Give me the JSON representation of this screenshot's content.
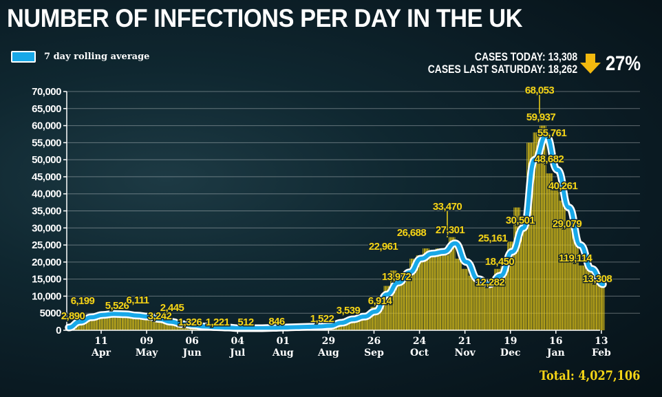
{
  "header": {
    "title": "NUMBER OF INFECTIONS PER DAY IN THE UK",
    "cases_today": "CASES TODAY: 13,308",
    "cases_last_saturday": "CASES LAST SATURDAY: 18,262",
    "change_percent": "27%",
    "change_direction": "down",
    "total": "Total: 4,027,106"
  },
  "colors": {
    "bars": "#e8c916",
    "rolling_line": "#18a8e8",
    "line_outline": "#ffffff",
    "annotations": "#f5d516",
    "background": "#0a1a22"
  },
  "chart_data": {
    "type": "bar",
    "title": "NUMBER OF INFECTIONS PER DAY IN THE UK",
    "ylim": [
      0,
      70000
    ],
    "yticks": [
      "0",
      "5000",
      "10,000",
      "15,000",
      "20,000",
      "25,000",
      "30,000",
      "35,000",
      "40,000",
      "45,000",
      "50,000",
      "55,000",
      "60,000",
      "65,000",
      "70,000"
    ],
    "xticks": [
      {
        "day": "11",
        "month": "Apr",
        "date": "2020-04-11"
      },
      {
        "day": "09",
        "month": "May",
        "date": "2020-05-09"
      },
      {
        "day": "06",
        "month": "Jun",
        "date": "2020-06-06"
      },
      {
        "day": "04",
        "month": "Jul",
        "date": "2020-07-04"
      },
      {
        "day": "01",
        "month": "Aug",
        "date": "2020-08-01"
      },
      {
        "day": "29",
        "month": "Aug",
        "date": "2020-08-29"
      },
      {
        "day": "26",
        "month": "Sep",
        "date": "2020-09-26"
      },
      {
        "day": "24",
        "month": "Oct",
        "date": "2020-10-24"
      },
      {
        "day": "21",
        "month": "Nov",
        "date": "2020-11-21"
      },
      {
        "day": "19",
        "month": "Dec",
        "date": "2020-12-19"
      },
      {
        "day": "16",
        "month": "Jan",
        "date": "2021-01-16"
      },
      {
        "day": "13",
        "month": "Feb",
        "date": "2021-02-13"
      }
    ],
    "grid": true,
    "legend": {
      "label": "7 day rolling average",
      "placement": "top-left"
    },
    "daily_cases": {
      "start_date": "2020-03-22",
      "step_days": 4,
      "values": [
        900,
        2100,
        2600,
        4400,
        4000,
        5200,
        4600,
        5000,
        4600,
        4300,
        4800,
        4400,
        3900,
        3400,
        3100,
        2600,
        2400,
        2000,
        1800,
        1600,
        1300,
        1100,
        1100,
        900,
        900,
        800,
        600,
        600,
        600,
        600,
        600,
        700,
        700,
        800,
        900,
        900,
        1000,
        1000,
        1100,
        1200,
        1300,
        1600,
        2900,
        3300,
        3200,
        4100,
        4900,
        6900,
        7100,
        13000,
        17500,
        14000,
        16500,
        21000,
        22000,
        24000,
        23000,
        24000,
        22000,
        27300,
        21000,
        18000,
        16000,
        13000,
        15000,
        14000,
        18000,
        19000,
        26000,
        36000,
        33000,
        55000,
        58000,
        60000,
        46000,
        41000,
        38000,
        30000,
        28000,
        19000,
        19000,
        14000,
        13308
      ]
    },
    "rolling_average": {
      "name": "7 day rolling average",
      "start_date": "2020-03-22",
      "step_days": 7,
      "values": [
        800,
        2500,
        3800,
        4500,
        4800,
        4700,
        4300,
        4000,
        3300,
        2500,
        1800,
        1400,
        1100,
        900,
        800,
        600,
        600,
        600,
        700,
        800,
        900,
        1000,
        1100,
        1300,
        2200,
        3200,
        4000,
        5500,
        10500,
        14000,
        17000,
        21000,
        22500,
        23000,
        25500,
        20000,
        15000,
        13500,
        16000,
        23000,
        30000,
        50000,
        57000,
        47000,
        36000,
        25000,
        18000,
        13500
      ]
    },
    "annotations": [
      "2,890",
      "6,199",
      "5,526",
      "6,111",
      "3,242",
      "2,445",
      "1,326",
      "1,221",
      "512",
      "846",
      "1,522",
      "3,539",
      "6,914",
      "22,961",
      "13,972",
      "26,688",
      "33,470",
      "27,301",
      "12,282",
      "18,450",
      "25,161",
      "30,501",
      "68,053",
      "59,937",
      "55,761",
      "48,682",
      "40,261",
      "29,079",
      "119,114",
      "13,308"
    ]
  }
}
